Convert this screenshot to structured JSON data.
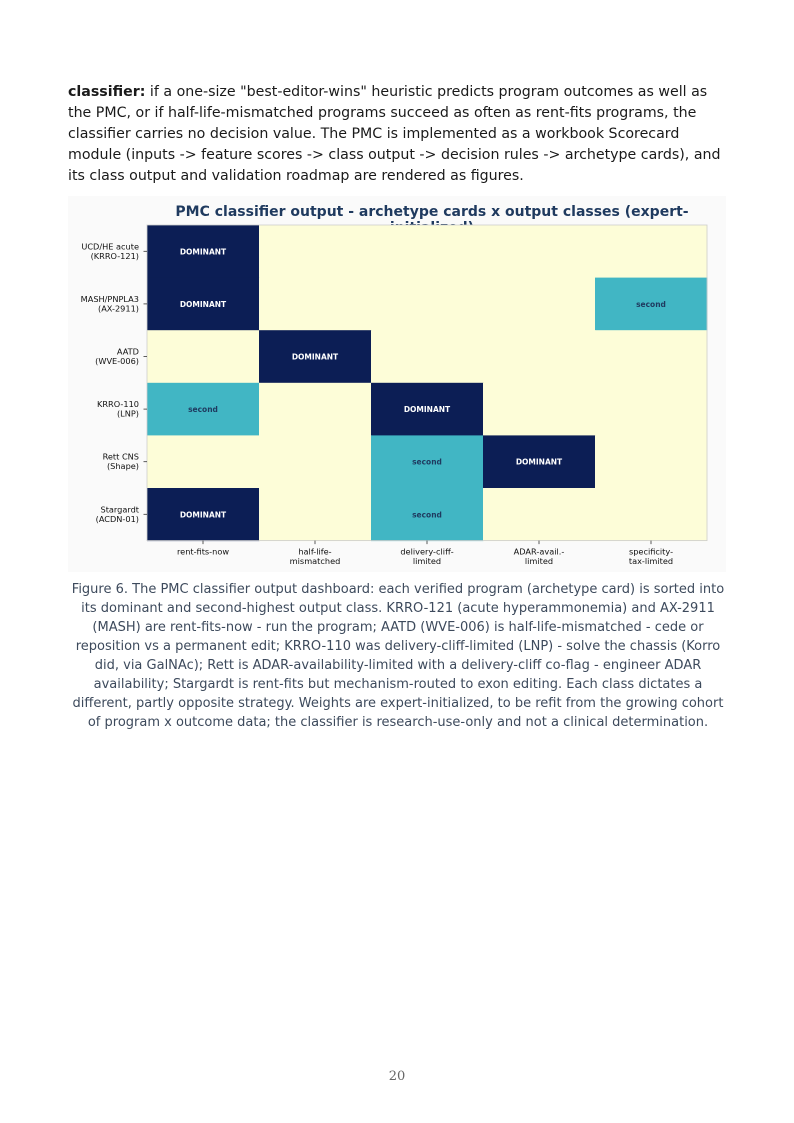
{
  "body": {
    "lead": "classifier:",
    "text": " if a one-size \"best-editor-wins\" heuristic predicts program outcomes as well as the PMC, or if half-life-mismatched programs succeed as often as rent-fits programs, the classifier carries no decision value. The PMC is implemented as a workbook Scorecard module (inputs -> feature scores -> class output -> decision rules -> archetype cards), and its class output and validation roadmap are rendered as figures."
  },
  "figure": {
    "title": "PMC classifier output - archetype cards x output classes (expert-initialized)",
    "caption": "Figure 6. The PMC classifier output dashboard: each verified program (archetype card) is sorted into its dominant and second-highest output class. KRRO-121 (acute hyperammonemia) and AX-2911 (MASH) are rent-fits-now - run the program; AATD (WVE-006) is half-life-mismatched - cede or reposition vs a permanent edit; KRRO-110 was delivery-cliff-limited (LNP) - solve the chassis (Korro did, via GalNAc); Rett is ADAR-availability-limited with a delivery-cliff co-flag - engineer ADAR availability; Stargardt is rent-fits but mechanism-routed to exon editing. Each class dictates a different, partly opposite strategy. Weights are expert-initialized, to be refit from the growing cohort of program x outcome data; the classifier is research-use-only and not a clinical determination."
  },
  "chart_data": {
    "type": "heatmap",
    "title": "PMC classifier output - archetype cards x output classes (expert-initialized)",
    "columns": [
      [
        "rent-fits-now"
      ],
      [
        "half-life-",
        "mismatched"
      ],
      [
        "delivery-cliff-",
        "limited"
      ],
      [
        "ADAR-avail.-",
        "limited"
      ],
      [
        "specificity-",
        "tax-limited"
      ]
    ],
    "rows": [
      [
        "UCD/HE acute",
        "(KRRO-121)"
      ],
      [
        "MASH/PNPLA3",
        "(AX-2911)"
      ],
      [
        "AATD",
        "(WVE-006)"
      ],
      [
        "KRRO-110",
        "(LNP)"
      ],
      [
        "Rett CNS",
        "(Shape)"
      ],
      [
        "Stargardt",
        "(ACDN-01)"
      ]
    ],
    "cells": [
      [
        2,
        0,
        0,
        0,
        0
      ],
      [
        2,
        0,
        0,
        0,
        1
      ],
      [
        0,
        2,
        0,
        0,
        0
      ],
      [
        1,
        0,
        2,
        0,
        0
      ],
      [
        0,
        0,
        1,
        2,
        0
      ],
      [
        2,
        0,
        1,
        0,
        0
      ]
    ],
    "cell_labels": {
      "2": "DOMINANT",
      "1": "second"
    },
    "colors": {
      "0": "#fdfdd8",
      "1": "#41b6c4",
      "2": "#0c1e55"
    },
    "label_colors": {
      "2": "#ffffff",
      "1": "#1f3a5f"
    }
  },
  "page_number": "20"
}
